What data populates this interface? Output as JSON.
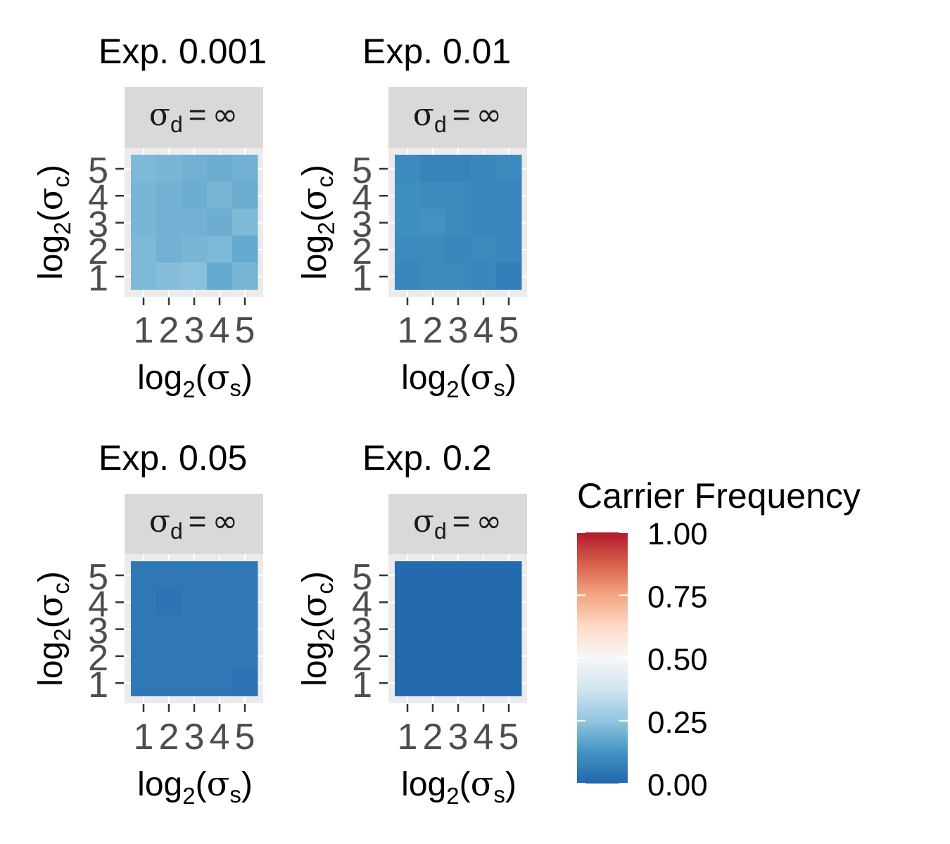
{
  "chart_data": {
    "type": "heatmap",
    "panels": [
      {
        "title": "Exp. 0.001",
        "strip": {
          "symbol": "σ",
          "sub": "d",
          "rel": "=",
          "value": "∞"
        },
        "values": [
          [
            0.22,
            0.21,
            0.2,
            0.19,
            0.2
          ],
          [
            0.21,
            0.2,
            0.19,
            0.21,
            0.19
          ],
          [
            0.21,
            0.2,
            0.2,
            0.19,
            0.22
          ],
          [
            0.22,
            0.2,
            0.21,
            0.22,
            0.18
          ],
          [
            0.22,
            0.23,
            0.24,
            0.18,
            0.21
          ]
        ]
      },
      {
        "title": "Exp. 0.01",
        "strip": {
          "symbol": "σ",
          "sub": "d",
          "rel": "=",
          "value": "∞"
        },
        "values": [
          [
            0.1,
            0.08,
            0.08,
            0.09,
            0.1
          ],
          [
            0.11,
            0.1,
            0.1,
            0.09,
            0.09
          ],
          [
            0.11,
            0.12,
            0.1,
            0.09,
            0.09
          ],
          [
            0.1,
            0.1,
            0.09,
            0.1,
            0.09
          ],
          [
            0.09,
            0.1,
            0.1,
            0.09,
            0.07
          ]
        ]
      },
      {
        "title": "Exp. 0.05",
        "strip": {
          "symbol": "σ",
          "sub": "d",
          "rel": "=",
          "value": "∞"
        },
        "values": [
          [
            0.05,
            0.05,
            0.05,
            0.05,
            0.05
          ],
          [
            0.05,
            0.04,
            0.05,
            0.05,
            0.05
          ],
          [
            0.05,
            0.05,
            0.05,
            0.05,
            0.05
          ],
          [
            0.05,
            0.05,
            0.05,
            0.05,
            0.05
          ],
          [
            0.05,
            0.05,
            0.05,
            0.05,
            0.04
          ]
        ]
      },
      {
        "title": "Exp. 0.2",
        "strip": {
          "symbol": "σ",
          "sub": "d",
          "rel": "=",
          "value": "∞"
        },
        "values": [
          [
            0.01,
            0.01,
            0.01,
            0.01,
            0.01
          ],
          [
            0.01,
            0.01,
            0.01,
            0.01,
            0.01
          ],
          [
            0.01,
            0.01,
            0.01,
            0.01,
            0.01
          ],
          [
            0.01,
            0.01,
            0.01,
            0.01,
            0.01
          ],
          [
            0.01,
            0.01,
            0.01,
            0.01,
            0.01
          ]
        ]
      }
    ],
    "x_ticks": [
      "1",
      "2",
      "3",
      "4",
      "5"
    ],
    "y_ticks": [
      "5",
      "4",
      "3",
      "2",
      "1"
    ],
    "xlabel": {
      "pre": "log",
      "sub": "2",
      "open": "(",
      "symbol": "σ",
      "symbol_sub": "s",
      "close": ")"
    },
    "ylabel": {
      "pre": "log",
      "sub": "2",
      "open": "(",
      "symbol": "σ",
      "symbol_sub": "c",
      "close": ")"
    },
    "legend": {
      "title": "Carrier Frequency",
      "position": "right",
      "range": [
        0,
        1
      ],
      "ticks": [
        "1.00",
        "0.75",
        "0.50",
        "0.25",
        "0.00"
      ],
      "tick_values": [
        1.0,
        0.75,
        0.5,
        0.25,
        0.0
      ],
      "colors": [
        "#2166ac",
        "#4393c3",
        "#92c5de",
        "#d1e5f0",
        "#f7f7f7",
        "#fddbc7",
        "#f4a582",
        "#d6604d",
        "#b2182b"
      ]
    },
    "grid": true
  }
}
